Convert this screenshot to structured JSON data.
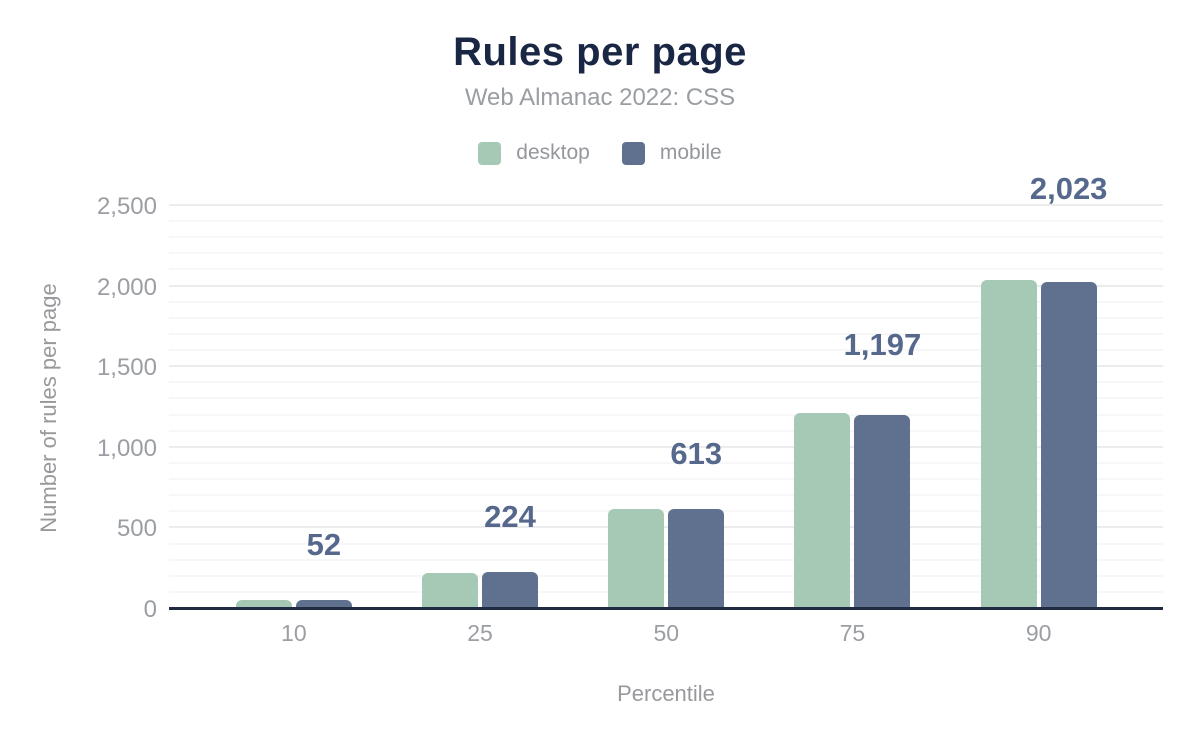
{
  "header": {
    "title": "Rules per page",
    "subtitle": "Web Almanac 2022: CSS"
  },
  "legend": [
    {
      "label": "desktop",
      "color": "#a6c9b6"
    },
    {
      "label": "mobile",
      "color": "#5f718e"
    }
  ],
  "chart_data": {
    "type": "bar",
    "title": "Rules per page",
    "subtitle": "Web Almanac 2022: CSS",
    "xlabel": "Percentile",
    "ylabel": "Number of rules per page",
    "categories": [
      "10",
      "25",
      "50",
      "75",
      "90"
    ],
    "series": [
      {
        "name": "desktop",
        "color": "#a6c9b6",
        "values": [
          48,
          218,
          616,
          1212,
          2036
        ]
      },
      {
        "name": "mobile",
        "color": "#5f718e",
        "values": [
          52,
          224,
          613,
          1197,
          2023
        ]
      }
    ],
    "data_labels": {
      "labeled_series": "mobile",
      "values": [
        "52",
        "224",
        "613",
        "1,197",
        "2,023"
      ]
    },
    "ylim": [
      0,
      2500
    ],
    "y_major_ticks": [
      0,
      500,
      1000,
      1500,
      2000,
      2500
    ],
    "y_tick_labels": [
      "0",
      "500",
      "1,000",
      "1,500",
      "2,000",
      "2,500"
    ],
    "y_minor_step": 100,
    "grid": "horizontal",
    "legend_position": "top",
    "colors": {
      "title": "#1a2744",
      "subtitle_text": "#9a9da2",
      "axis_line": "#202b42",
      "tick_text": "#9b9ea3",
      "data_label_text": "#56698d",
      "grid_major": "#ececec",
      "grid_minor": "#f7f7f7",
      "background": "#ffffff"
    }
  }
}
